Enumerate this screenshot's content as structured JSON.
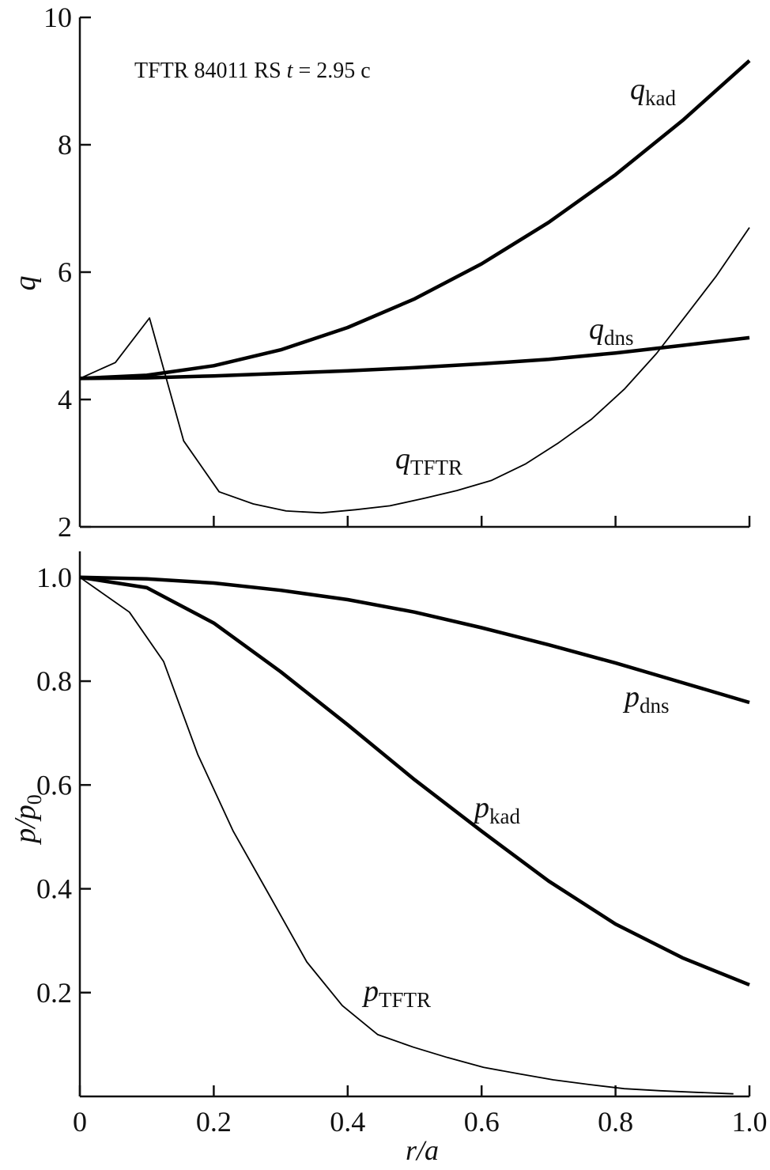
{
  "chart_data": [
    {
      "type": "line",
      "annotation": [
        "TFTR 84011 RS ",
        "t",
        " = 2.95 c"
      ],
      "ylabel": "q",
      "xlim": [
        0,
        1
      ],
      "ylim": [
        2,
        10
      ],
      "xticks": [
        0.2,
        0.4,
        0.6,
        0.8,
        1.0
      ],
      "xtick_labels": false,
      "yticks": [
        2,
        4,
        6,
        8,
        10
      ],
      "series": [
        {
          "symbol": "q",
          "subscript": "kad",
          "color": "#000000",
          "line_width": 4.5,
          "x": [
            0,
            0.1,
            0.2,
            0.3,
            0.4,
            0.5,
            0.6,
            0.7,
            0.8,
            0.9,
            1.0
          ],
          "values": [
            4.33,
            4.38,
            4.53,
            4.78,
            5.13,
            5.58,
            6.13,
            6.78,
            7.53,
            8.38,
            9.32
          ]
        },
        {
          "symbol": "q",
          "subscript": "dns",
          "color": "#000000",
          "line_width": 4.5,
          "x": [
            0,
            0.1,
            0.2,
            0.3,
            0.4,
            0.5,
            0.6,
            0.7,
            0.8,
            0.9,
            1.0
          ],
          "values": [
            4.33,
            4.34,
            4.37,
            4.41,
            4.45,
            4.5,
            4.56,
            4.63,
            4.73,
            4.85,
            4.97
          ]
        },
        {
          "symbol": "q",
          "subscript": "TFTR",
          "color": "#000000",
          "line_width": 1.8,
          "x": [
            0,
            0.053,
            0.104,
            0.155,
            0.208,
            0.259,
            0.308,
            0.361,
            0.412,
            0.463,
            0.515,
            0.563,
            0.615,
            0.666,
            0.715,
            0.764,
            0.813,
            0.861,
            0.906,
            0.95,
            1.0
          ],
          "values": [
            4.33,
            4.58,
            5.28,
            3.35,
            2.55,
            2.36,
            2.25,
            2.22,
            2.27,
            2.33,
            2.45,
            2.57,
            2.73,
            2.99,
            3.32,
            3.69,
            4.16,
            4.72,
            5.33,
            5.93,
            6.7
          ]
        }
      ]
    },
    {
      "type": "line",
      "ylabel": "p/p",
      "ylabel_sub": "0",
      "xlabel": "r/a",
      "xlim": [
        0,
        1
      ],
      "ylim": [
        0,
        1.05
      ],
      "xticks": [
        0,
        0.2,
        0.4,
        0.6,
        0.8,
        {
          "value": 1,
          "label": "1.0"
        }
      ],
      "yticks": [
        0.2,
        0.4,
        0.6,
        0.8,
        {
          "value": 1,
          "label": "1.0"
        }
      ],
      "series": [
        {
          "symbol": "p",
          "subscript": "dns",
          "color": "#000000",
          "line_width": 4.5,
          "x": [
            0,
            0.1,
            0.2,
            0.3,
            0.4,
            0.5,
            0.6,
            0.7,
            0.8,
            0.9,
            1.0
          ],
          "values": [
            1.0,
            0.997,
            0.989,
            0.975,
            0.957,
            0.933,
            0.903,
            0.87,
            0.835,
            0.797,
            0.759
          ]
        },
        {
          "symbol": "p",
          "subscript": "kad",
          "color": "#000000",
          "line_width": 4.5,
          "x": [
            0,
            0.1,
            0.2,
            0.3,
            0.4,
            0.5,
            0.6,
            0.7,
            0.8,
            0.9,
            1.0
          ],
          "values": [
            1.0,
            0.98,
            0.912,
            0.818,
            0.716,
            0.61,
            0.511,
            0.415,
            0.332,
            0.267,
            0.215
          ]
        },
        {
          "symbol": "p",
          "subscript": "TFTR",
          "color": "#000000",
          "line_width": 1.8,
          "x": [
            0,
            0.074,
            0.125,
            0.176,
            0.229,
            0.286,
            0.339,
            0.392,
            0.445,
            0.498,
            0.549,
            0.603,
            0.654,
            0.707,
            0.76,
            0.813,
            0.867,
            0.92,
            0.976
          ],
          "values": [
            1.0,
            0.933,
            0.838,
            0.659,
            0.511,
            0.381,
            0.259,
            0.175,
            0.119,
            0.095,
            0.075,
            0.056,
            0.044,
            0.032,
            0.023,
            0.015,
            0.011,
            0.008,
            0.005
          ]
        }
      ]
    }
  ]
}
